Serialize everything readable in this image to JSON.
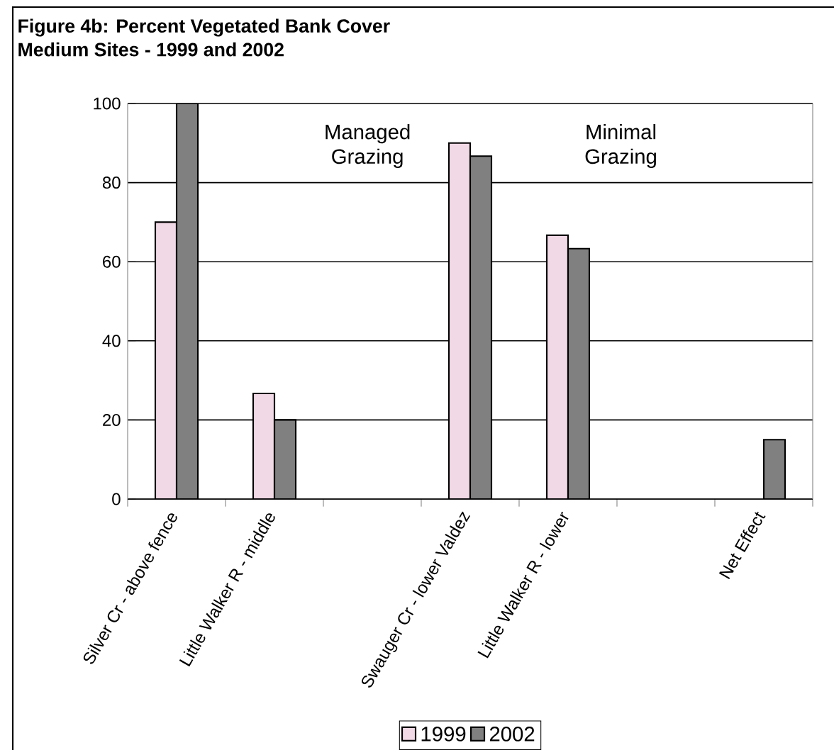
{
  "chart_data": {
    "type": "bar",
    "title": "Figure 4b: Percent Vegetated Bank Cover",
    "subtitle": "Medium Sites - 1999 and 2002",
    "categories": [
      "Silver Cr - above fence",
      "Little Walker R - middle",
      null,
      "Swauger Cr - lower Valdez",
      "Little Walker R - lower",
      null,
      "Net Effect"
    ],
    "series": [
      {
        "name": "1999",
        "color": "#f2d9e6",
        "values": [
          70,
          26.7,
          null,
          90,
          66.7,
          null,
          null
        ]
      },
      {
        "name": "2002",
        "color": "#808080",
        "values": [
          100,
          20,
          null,
          86.7,
          63.3,
          null,
          15
        ]
      }
    ],
    "ylim": [
      0,
      100
    ],
    "yticks": [
      0,
      20,
      40,
      60,
      80,
      100
    ],
    "grid": "y",
    "legend": "bottom",
    "annotations": [
      "Managed Grazing",
      "Minimal Grazing"
    ]
  }
}
